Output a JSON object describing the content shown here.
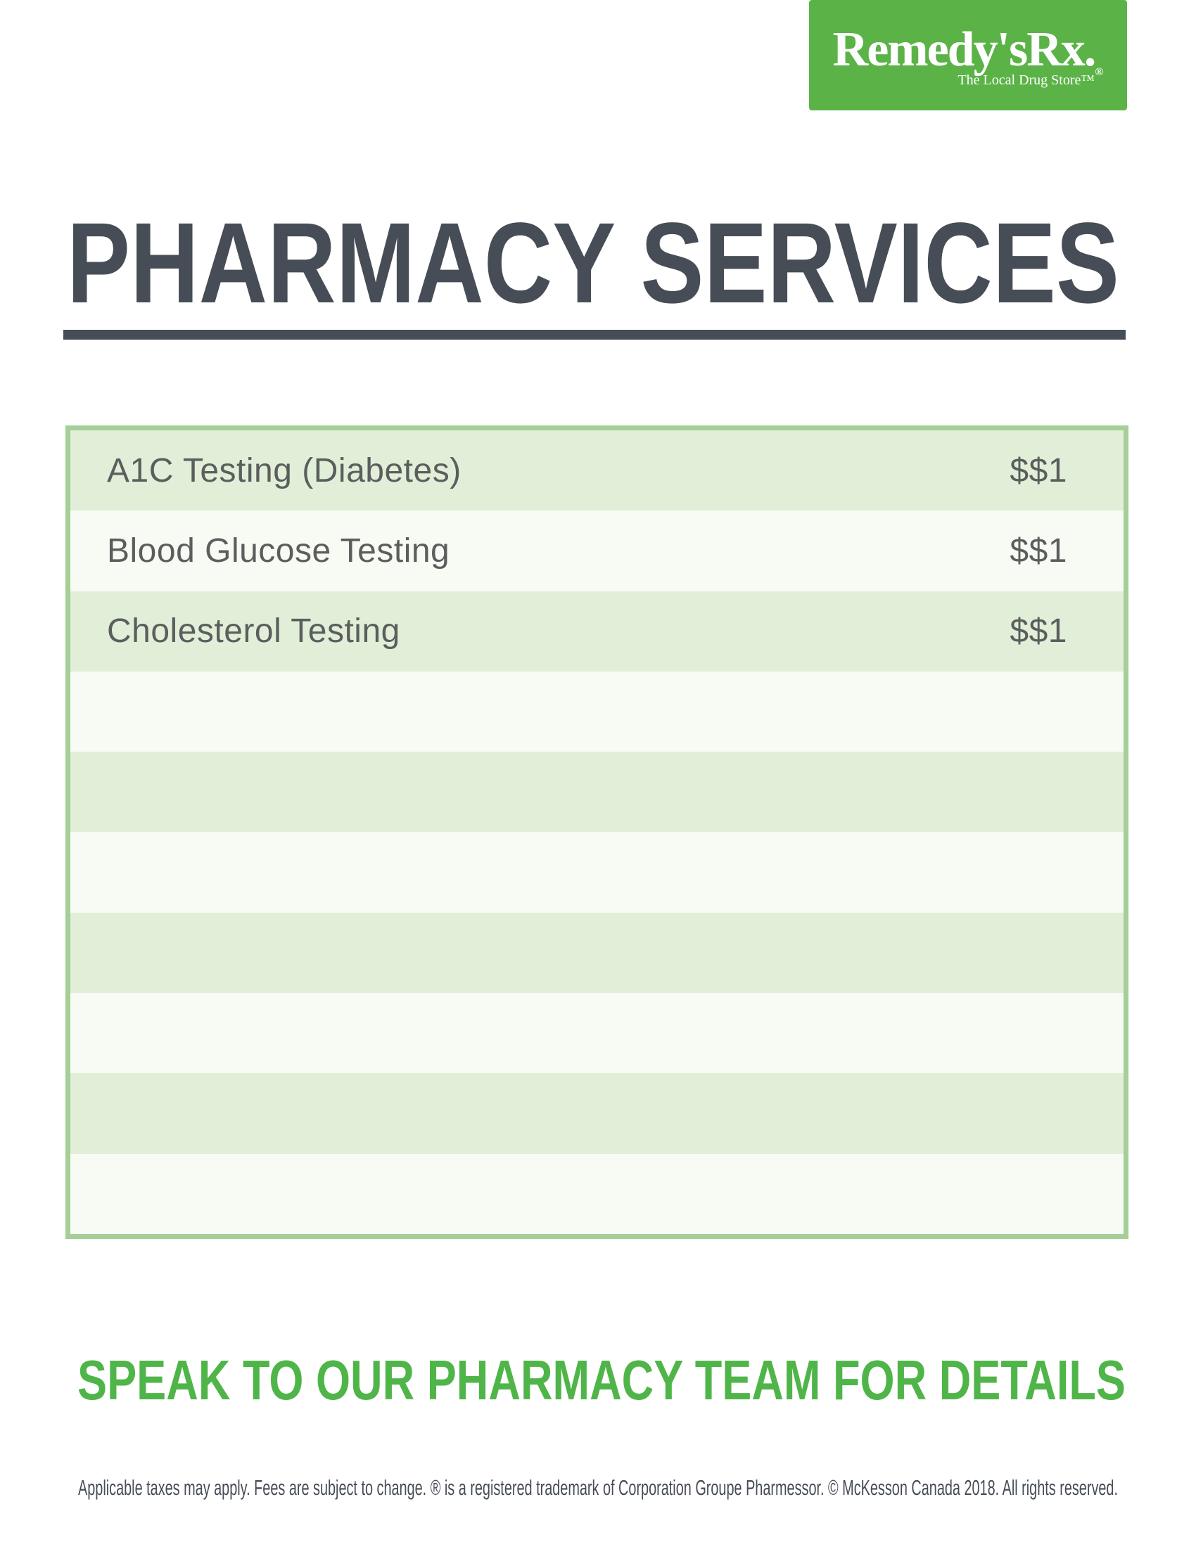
{
  "logo": {
    "wordmark": "Remedy'sRx.",
    "registered_mark": "®",
    "tagline": "The Local Drug Store™"
  },
  "title": "PHARMACY SERVICES",
  "services": {
    "rows": [
      {
        "label": "A1C Testing (Diabetes)",
        "price": "$$1"
      },
      {
        "label": "Blood Glucose Testing",
        "price": "$$1"
      },
      {
        "label": "Cholesterol Testing",
        "price": "$$1"
      },
      {
        "label": "",
        "price": ""
      },
      {
        "label": "",
        "price": ""
      },
      {
        "label": "",
        "price": ""
      },
      {
        "label": "",
        "price": ""
      },
      {
        "label": "",
        "price": ""
      },
      {
        "label": "",
        "price": ""
      },
      {
        "label": "",
        "price": ""
      }
    ]
  },
  "cta": "SPEAK TO OUR PHARMACY TEAM FOR DETAILS",
  "footer": "Applicable taxes may apply. Fees are subject to change. ® is a registered trademark of Corporation Groupe Pharmessor. © McKesson Canada 2018. All rights reserved.",
  "colors": {
    "brand_green": "#5bb347",
    "cta_green": "#4fb549",
    "table_border_green": "#a5cf97",
    "row_green": "#e1efd8",
    "row_light": "#f7fbf3",
    "heading_dark": "#474d56",
    "row_text_gray": "#5a5e5d"
  }
}
